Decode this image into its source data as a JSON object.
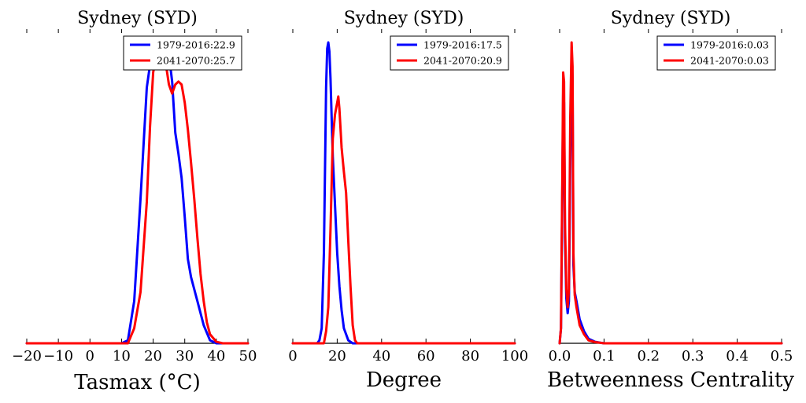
{
  "chart_data": [
    {
      "type": "line",
      "title": "Sydney (SYD)",
      "xlabel": "Tasmax ($^\\circ$C)",
      "xlabel_display": "Tasmax (°C)",
      "ylabel": "",
      "xlim": [
        -20,
        50
      ],
      "xticks": [
        -20,
        -10,
        0,
        10,
        20,
        30,
        40,
        50
      ],
      "xtick_labels": [
        "−20",
        "−10",
        "0",
        "10",
        "20",
        "30",
        "40",
        "50"
      ],
      "ylim": [
        0,
        1.0
      ],
      "legend_position": "top-right",
      "series": [
        {
          "name": "1979-2016:22.9",
          "color": "#0000ff",
          "x": [
            -20,
            10,
            12,
            14,
            16,
            18,
            20,
            21,
            22,
            23,
            24,
            25,
            26,
            27,
            28,
            29,
            30,
            31,
            32,
            34,
            36,
            38,
            40,
            50
          ],
          "y": [
            0,
            0,
            0.01,
            0.14,
            0.48,
            0.85,
            1.0,
            0.97,
            0.93,
            0.96,
            0.99,
            0.96,
            0.87,
            0.7,
            0.63,
            0.55,
            0.42,
            0.28,
            0.22,
            0.14,
            0.06,
            0.01,
            0,
            0
          ]
        },
        {
          "name": "2041-2070:25.7",
          "color": "#ff0000",
          "x": [
            -20,
            12,
            14,
            16,
            18,
            19,
            20,
            21,
            22,
            23,
            24,
            25,
            26,
            27,
            28,
            29,
            30,
            31,
            32,
            33,
            34,
            35,
            36,
            37,
            38,
            40,
            42,
            50
          ],
          "y": [
            0,
            0,
            0.05,
            0.17,
            0.47,
            0.72,
            0.9,
            0.96,
            0.95,
            0.97,
            0.93,
            0.86,
            0.83,
            0.86,
            0.87,
            0.86,
            0.8,
            0.71,
            0.6,
            0.48,
            0.35,
            0.23,
            0.14,
            0.07,
            0.03,
            0.005,
            0,
            0
          ]
        }
      ]
    },
    {
      "type": "line",
      "title": "Sydney (SYD)",
      "xlabel": "Degree",
      "xlabel_display": "Degree",
      "ylabel": "",
      "xlim": [
        0,
        100
      ],
      "xticks": [
        0,
        20,
        40,
        60,
        80,
        100
      ],
      "xtick_labels": [
        "0",
        "20",
        "40",
        "60",
        "80",
        "100"
      ],
      "ylim": [
        0,
        1.0
      ],
      "legend_position": "top-right",
      "series": [
        {
          "name": "1979-2016:17.5",
          "color": "#0000ff",
          "x": [
            0,
            11,
            12,
            13,
            14,
            15,
            15.5,
            16,
            16.5,
            17,
            18,
            19,
            20,
            21,
            22,
            23,
            24,
            25,
            26,
            27,
            100
          ],
          "y": [
            0,
            0,
            0.01,
            0.05,
            0.3,
            0.85,
            0.98,
            1.0,
            0.97,
            0.88,
            0.62,
            0.46,
            0.3,
            0.19,
            0.11,
            0.05,
            0.03,
            0.01,
            0.005,
            0,
            0
          ]
        },
        {
          "name": "2041-2070:20.9",
          "color": "#ff0000",
          "x": [
            0,
            14,
            15,
            16,
            17,
            18,
            19,
            20,
            20.5,
            21,
            22,
            23,
            24,
            25,
            26,
            27,
            28,
            29,
            100
          ],
          "y": [
            0,
            0,
            0.04,
            0.12,
            0.38,
            0.68,
            0.76,
            0.8,
            0.82,
            0.78,
            0.65,
            0.57,
            0.5,
            0.34,
            0.19,
            0.06,
            0.01,
            0,
            0
          ]
        }
      ]
    },
    {
      "type": "line",
      "title": "Sydney (SYD)",
      "xlabel": "Betweenness Centrality",
      "xlabel_display": "Betweenness Centrality",
      "ylabel": "",
      "xlim": [
        0,
        0.5
      ],
      "xticks": [
        0.0,
        0.1,
        0.2,
        0.3,
        0.4,
        0.5
      ],
      "xtick_labels": [
        "0.0",
        "0.1",
        "0.2",
        "0.3",
        "0.4",
        "0.5"
      ],
      "ylim": [
        0,
        1.0
      ],
      "legend_position": "top-right",
      "series": [
        {
          "name": "1979-2016:0.03",
          "color": "#0000ff",
          "x": [
            0,
            0.003,
            0.006,
            0.008,
            0.01,
            0.012,
            0.015,
            0.018,
            0.021,
            0.024,
            0.027,
            0.029,
            0.031,
            0.034,
            0.038,
            0.045,
            0.055,
            0.065,
            0.08,
            0.1,
            0.5
          ],
          "y": [
            0,
            0.05,
            0.5,
            0.83,
            0.8,
            0.35,
            0.15,
            0.1,
            0.14,
            0.6,
            0.95,
            0.88,
            0.26,
            0.17,
            0.14,
            0.08,
            0.04,
            0.015,
            0.005,
            0,
            0
          ]
        },
        {
          "name": "2041-2070:0.03",
          "color": "#ff0000",
          "x": [
            0,
            0.003,
            0.006,
            0.008,
            0.01,
            0.012,
            0.015,
            0.018,
            0.021,
            0.024,
            0.027,
            0.029,
            0.031,
            0.034,
            0.038,
            0.045,
            0.055,
            0.065,
            0.08,
            0.1,
            0.5
          ],
          "y": [
            0,
            0.05,
            0.55,
            0.9,
            0.87,
            0.4,
            0.18,
            0.12,
            0.18,
            0.75,
            1.0,
            0.92,
            0.3,
            0.16,
            0.12,
            0.06,
            0.03,
            0.01,
            0.004,
            0,
            0
          ]
        }
      ]
    }
  ]
}
